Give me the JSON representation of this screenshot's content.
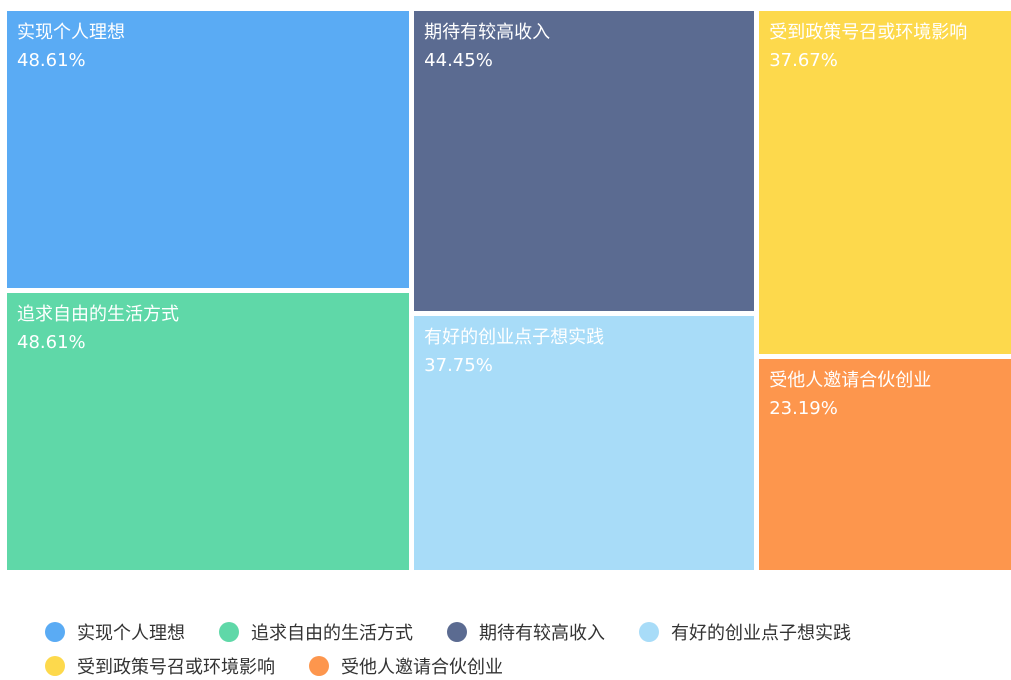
{
  "chart_data": {
    "type": "treemap",
    "categories": [
      "实现个人理想",
      "追求自由的生活方式",
      "期待有较高收入",
      "有好的创业点子想实践",
      "受到政策号召或环境影响",
      "受他人邀请合伙创业"
    ],
    "values": [
      48.61,
      48.61,
      44.45,
      37.75,
      37.67,
      23.19
    ],
    "value_labels": [
      "48.61%",
      "48.61%",
      "44.45%",
      "37.75%",
      "37.67%",
      "23.19%"
    ],
    "colors": [
      "#5aabf4",
      "#5fd8a8",
      "#5b6b91",
      "#a8dcf8",
      "#fdd94c",
      "#fd964d"
    ],
    "legend": "bottom"
  }
}
